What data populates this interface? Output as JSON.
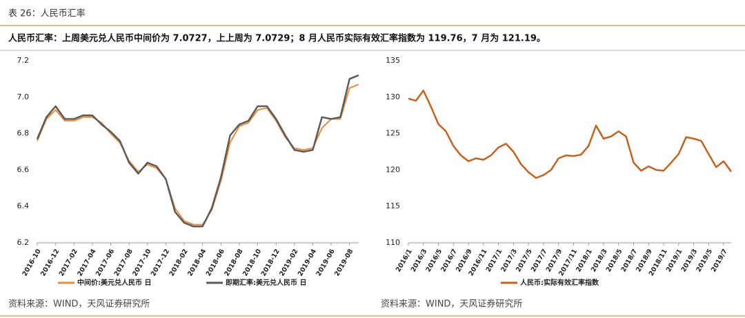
{
  "header": {
    "title": "表 26：人民币汇率",
    "summary": "人民币汇率：上周美元兑人民币中间价为 7.0727，上上周为 7.0729；8 月人民币实际有效汇率指数为 119.76，7 月为 121.19。"
  },
  "chart_data": [
    {
      "type": "line",
      "categories": [
        "2016-10",
        null,
        "2016-12",
        null,
        "2017-02",
        null,
        "2017-04",
        null,
        "2017-06",
        null,
        "2017-08",
        null,
        "2017-10",
        null,
        "2017-12",
        null,
        "2018-02",
        null,
        "2018-04",
        null,
        "2018-06",
        null,
        "2018-08",
        null,
        "2018-10",
        null,
        "2018-12",
        null,
        "2019-02",
        null,
        "2019-04",
        null,
        "2019-06",
        null,
        "2019-08",
        null
      ],
      "series": [
        {
          "name": "中间价:美元兑人民币 日",
          "color": "#ED8A35",
          "width": 2,
          "values": [
            6.76,
            6.88,
            6.93,
            6.87,
            6.87,
            6.89,
            6.89,
            6.86,
            6.8,
            6.75,
            6.65,
            6.59,
            6.63,
            6.61,
            6.55,
            6.39,
            6.32,
            6.3,
            6.3,
            6.38,
            6.54,
            6.75,
            6.84,
            6.86,
            6.93,
            6.94,
            6.87,
            6.78,
            6.72,
            6.71,
            6.72,
            6.83,
            6.88,
            6.88,
            7.05,
            7.07
          ]
        },
        {
          "name": "即期汇率:美元兑人民币 日",
          "color": "#5A5A5A",
          "width": 2.5,
          "values": [
            6.77,
            6.89,
            6.95,
            6.88,
            6.88,
            6.9,
            6.9,
            6.85,
            6.81,
            6.76,
            6.64,
            6.58,
            6.64,
            6.62,
            6.55,
            6.37,
            6.31,
            6.29,
            6.29,
            6.39,
            6.56,
            6.79,
            6.85,
            6.87,
            6.95,
            6.95,
            6.88,
            6.79,
            6.71,
            6.7,
            6.71,
            6.89,
            6.88,
            6.89,
            7.1,
            7.12
          ]
        }
      ],
      "ylim": [
        6.2,
        7.2
      ],
      "yticks": [
        6.2,
        6.4,
        6.6,
        6.8,
        {
          "value": 7,
          "label": "7.0"
        },
        7.2
      ],
      "legend": "bottom",
      "source": "资料来源：WIND，天风证券研究所"
    },
    {
      "type": "line",
      "categories": [
        "2016/1",
        null,
        "2016/3",
        null,
        "2016/5",
        null,
        "2016/7",
        null,
        "2016/9",
        null,
        "2016/11",
        null,
        "2017/1",
        null,
        "2017/3",
        null,
        "2017/5",
        null,
        "2017/7",
        null,
        "2017/9",
        null,
        "2017/11",
        null,
        "2018/1",
        null,
        "2018/3",
        null,
        "2018/5",
        null,
        "2018/7",
        null,
        "2018/9",
        null,
        "2018/11",
        null,
        "2019/1",
        null,
        "2019/3",
        null,
        "2019/5",
        null,
        "2019/7",
        null
      ],
      "series": [
        {
          "name": "人民币:实际有效汇率指数",
          "color": "#C8601A",
          "width": 2.5,
          "values": [
            129.8,
            129.5,
            130.9,
            128.7,
            126.3,
            125.3,
            123.3,
            122.0,
            121.2,
            121.6,
            121.4,
            122.0,
            123.1,
            123.6,
            122.5,
            120.8,
            119.7,
            118.9,
            119.3,
            120.0,
            121.6,
            122.0,
            121.9,
            122.1,
            123.3,
            126.1,
            124.3,
            124.6,
            125.3,
            124.6,
            121.0,
            119.9,
            120.5,
            120.0,
            119.9,
            121.0,
            122.2,
            124.5,
            124.3,
            124.0,
            122.2,
            120.4,
            121.19,
            119.76
          ]
        }
      ],
      "ylim": [
        110,
        135
      ],
      "yticks": [
        110,
        115,
        120,
        125,
        130,
        135
      ],
      "legend": "bottom",
      "source": "资料来源：WIND，天风证券研究所"
    }
  ]
}
